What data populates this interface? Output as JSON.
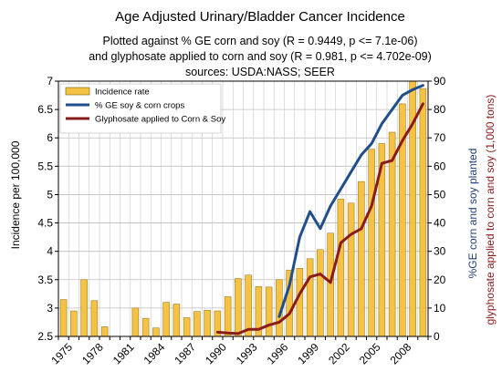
{
  "chart_data": {
    "type": "bar+line",
    "title": "Age Adjusted Urinary/Bladder Cancer Incidence",
    "subtitle_lines": [
      "Plotted against % GE corn and soy (R = 0.9449, p <= 7.1e-06)",
      "and glyphosate applied to corn and soy (R = 0.981, p <= 4.702e-09)",
      "sources: USDA:NASS; SEER"
    ],
    "ylabel_left": "Incidence per 100,000",
    "ylabel_right_1": "%GE corn and soy planted",
    "ylabel_right_2": "glyphosate applied to corn and soy (1,000 tons)",
    "ylim_left": [
      2.5,
      7
    ],
    "ylim_right": [
      0,
      90
    ],
    "y_ticks_left": [
      "2.5",
      "3",
      "3.5",
      "4",
      "4.5",
      "5",
      "5.5",
      "6",
      "6.5",
      "7"
    ],
    "y_ticks_right": [
      "0",
      "10",
      "20",
      "30",
      "40",
      "50",
      "60",
      "70",
      "80",
      "90"
    ],
    "x_tick_labels": [
      "1975",
      "1978",
      "1981",
      "1984",
      "1987",
      "1990",
      "1993",
      "1996",
      "1999",
      "2002",
      "2005",
      "2008"
    ],
    "years": [
      1975,
      1976,
      1977,
      1978,
      1979,
      1980,
      1981,
      1982,
      1983,
      1984,
      1985,
      1986,
      1987,
      1988,
      1989,
      1990,
      1991,
      1992,
      1993,
      1994,
      1995,
      1996,
      1997,
      1998,
      1999,
      2000,
      2001,
      2002,
      2003,
      2004,
      2005,
      2006,
      2007,
      2008,
      2009,
      2010
    ],
    "legend": [
      "Incidence rate",
      "% GE soy & corn crops",
      "Glyphosate applied to Corn & Soy"
    ],
    "grid": true,
    "legend_position": "top-left",
    "series": [
      {
        "name": "Incidence rate",
        "kind": "bar",
        "axis": "left",
        "color": "#f5c243",
        "years": [
          1975,
          1976,
          1977,
          1978,
          1979,
          1980,
          1981,
          1982,
          1983,
          1984,
          1985,
          1986,
          1987,
          1988,
          1989,
          1990,
          1991,
          1992,
          1993,
          1994,
          1995,
          1996,
          1997,
          1998,
          1999,
          2000,
          2001,
          2002,
          2003,
          2004,
          2005,
          2006,
          2007,
          2008,
          2009,
          2010
        ],
        "values": [
          3.15,
          2.95,
          3.5,
          3.13,
          2.67,
          2.45,
          2.5,
          3.0,
          2.82,
          2.65,
          3.1,
          3.07,
          2.83,
          2.94,
          2.96,
          2.95,
          3.2,
          3.52,
          3.58,
          3.38,
          3.37,
          3.5,
          3.67,
          3.7,
          3.87,
          4.03,
          4.32,
          4.92,
          4.85,
          5.23,
          5.8,
          5.9,
          6.1,
          6.6,
          7.0,
          6.87
        ]
      },
      {
        "name": "% GE soy & corn crops",
        "kind": "line",
        "axis": "right",
        "color": "#1f4e8c",
        "years": [
          1996,
          1997,
          1998,
          1999,
          2000,
          2001,
          2002,
          2003,
          2004,
          2005,
          2006,
          2007,
          2008,
          2009,
          2010
        ],
        "values": [
          7,
          18,
          35,
          44,
          38,
          46,
          52,
          58,
          64,
          68,
          75,
          80,
          85,
          87,
          88.5
        ]
      },
      {
        "name": "Glyphosate applied to Corn & Soy",
        "kind": "line",
        "axis": "right",
        "color": "#8b1a1a",
        "years": [
          1990,
          1991,
          1992,
          1993,
          1994,
          1995,
          1996,
          1997,
          1998,
          1999,
          2000,
          2001,
          2002,
          2003,
          2004,
          2005,
          2006,
          2007,
          2008,
          2009,
          2010
        ],
        "values": [
          1.5,
          1.2,
          1,
          2.5,
          2.5,
          4,
          5,
          8,
          15,
          21,
          22,
          19,
          33,
          36,
          38,
          46,
          61,
          62,
          69,
          75,
          82
        ]
      }
    ]
  }
}
